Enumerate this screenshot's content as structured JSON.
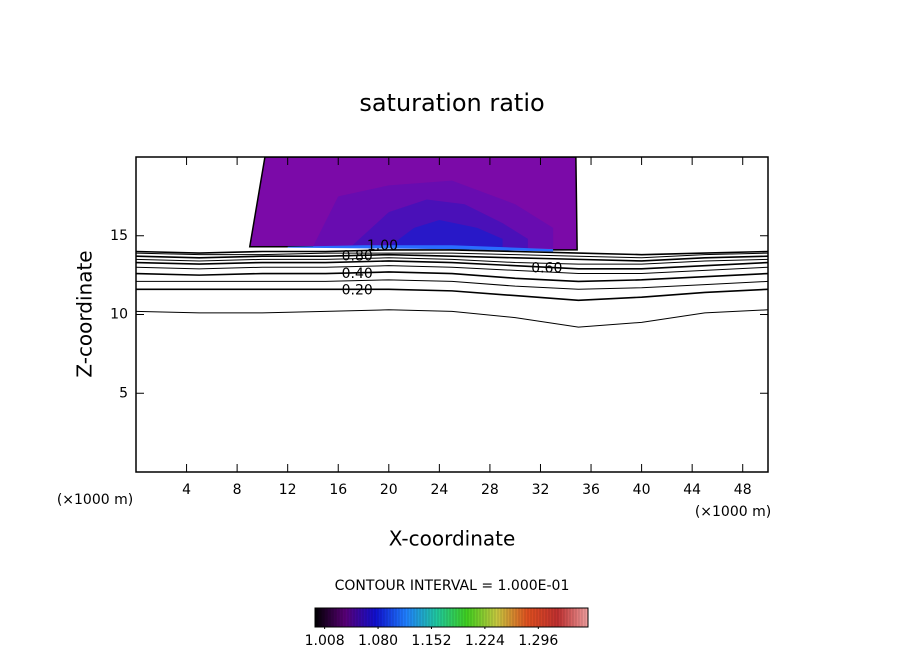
{
  "chart_data": {
    "type": "contour",
    "title": "saturation ratio",
    "xlabel": "X-coordinate",
    "ylabel": "Z-coordinate",
    "x_unit": "(×1000 m)",
    "y_unit": "(×1000 m)",
    "xlim": [
      0,
      50
    ],
    "ylim": [
      0,
      20
    ],
    "xticks": [
      4,
      8,
      12,
      16,
      20,
      24,
      28,
      32,
      36,
      40,
      44,
      48
    ],
    "yticks": [
      5,
      10,
      15
    ],
    "x": [
      0,
      5,
      10,
      15,
      20,
      25,
      30,
      35,
      40,
      45,
      50
    ],
    "contours": [
      {
        "level": 0.1,
        "y": [
          10.2,
          10.1,
          10.1,
          10.2,
          10.3,
          10.2,
          9.8,
          9.2,
          9.5,
          10.1,
          10.3
        ]
      },
      {
        "level": 0.2,
        "label": "0.20",
        "y": [
          11.6,
          11.6,
          11.6,
          11.6,
          11.6,
          11.5,
          11.2,
          10.9,
          11.1,
          11.4,
          11.6
        ]
      },
      {
        "level": 0.3,
        "y": [
          12.1,
          12.1,
          12.1,
          12.1,
          12.2,
          12.1,
          11.8,
          11.6,
          11.7,
          11.9,
          12.1
        ]
      },
      {
        "level": 0.4,
        "label": "0.40",
        "y": [
          12.6,
          12.5,
          12.6,
          12.6,
          12.7,
          12.6,
          12.3,
          12.1,
          12.2,
          12.4,
          12.6
        ]
      },
      {
        "level": 0.5,
        "y": [
          13.0,
          12.9,
          13.0,
          13.0,
          13.1,
          13.0,
          12.8,
          12.6,
          12.6,
          12.8,
          13.0
        ]
      },
      {
        "level": 0.6,
        "label": "0.60",
        "y": [
          13.3,
          13.2,
          13.3,
          13.3,
          13.4,
          13.3,
          13.1,
          12.9,
          12.9,
          13.1,
          13.3
        ]
      },
      {
        "level": 0.7,
        "y": [
          13.5,
          13.4,
          13.5,
          13.5,
          13.6,
          13.5,
          13.3,
          13.2,
          13.2,
          13.4,
          13.5
        ]
      },
      {
        "level": 0.8,
        "label": "0.80",
        "y": [
          13.7,
          13.6,
          13.7,
          13.7,
          13.8,
          13.7,
          13.6,
          13.5,
          13.4,
          13.6,
          13.7
        ]
      },
      {
        "level": 0.9,
        "y": [
          13.9,
          13.8,
          13.8,
          13.9,
          13.9,
          13.9,
          13.8,
          13.7,
          13.6,
          13.8,
          13.9
        ]
      },
      {
        "level": 1.0,
        "label": "1.00",
        "y": [
          14.0,
          13.9,
          14.0,
          14.0,
          14.1,
          14.1,
          14.0,
          13.9,
          13.8,
          13.9,
          14.0
        ]
      }
    ],
    "shading": [
      {
        "value": 1.01,
        "color": "#7b0aa8",
        "x": [
          9.0,
          10.2,
          34.8,
          34.9,
          31,
          25,
          18,
          12
        ],
        "y": [
          14.3,
          20,
          20,
          14.1,
          14.1,
          14.2,
          14.3,
          14.3
        ]
      },
      {
        "value": 1.02,
        "color": "#680cb0",
        "x": [
          14,
          16,
          20,
          25,
          30,
          33,
          33,
          14
        ],
        "y": [
          14.3,
          17.5,
          18.2,
          18.5,
          17,
          15.5,
          14.2,
          14.3
        ]
      },
      {
        "value": 1.04,
        "color": "#4a10b8",
        "x": [
          17,
          20,
          23,
          26,
          29,
          31,
          31,
          17
        ],
        "y": [
          14.3,
          16.5,
          17.3,
          17,
          15.8,
          14.8,
          14.2,
          14.3
        ]
      },
      {
        "value": 1.06,
        "color": "#2818c8",
        "x": [
          20,
          22,
          24,
          27,
          29,
          29,
          20
        ],
        "y": [
          14.3,
          15.5,
          16,
          15.5,
          14.8,
          14.2,
          14.3
        ]
      },
      {
        "value": 1.08,
        "color": "#2a6cff",
        "x": [
          12,
          18,
          25,
          33,
          33,
          25,
          18,
          12
        ],
        "y": [
          14.3,
          14.4,
          14.4,
          14.15,
          14.0,
          14.15,
          14.2,
          14.25
        ]
      }
    ],
    "contour_interval": "CONTOUR INTERVAL = 1.000E-01",
    "colorbar": {
      "clim": [
        0.995,
        1.363
      ],
      "ticks": [
        {
          "value": 1.008,
          "label": "1.008"
        },
        {
          "value": 1.08,
          "label": "1.080"
        },
        {
          "value": 1.152,
          "label": "1.152"
        },
        {
          "value": 1.224,
          "label": "1.224"
        },
        {
          "value": 1.296,
          "label": "1.296"
        }
      ],
      "colors": [
        "#000000",
        "#5a0078",
        "#1010d0",
        "#2080ff",
        "#20c8a0",
        "#40d020",
        "#c8c840",
        "#e05020",
        "#c03030",
        "#f0a0a0"
      ]
    }
  }
}
